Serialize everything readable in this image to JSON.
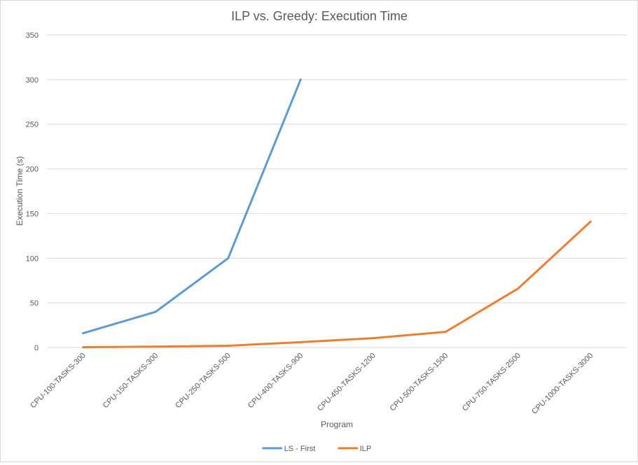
{
  "chart_data": {
    "type": "line",
    "title": "ILP vs. Greedy: Execution Time",
    "xlabel": "Program",
    "ylabel": "Execution Time (s)",
    "ylim": [
      0,
      350
    ],
    "yticks": [
      0,
      50,
      100,
      150,
      200,
      250,
      300,
      350
    ],
    "grid": true,
    "legend": "bottom",
    "categories": [
      "CPU-100-TASKS-300",
      "CPU-150-TASKS-300",
      "CPU-250-TASKS-500",
      "CPU-400-TASKS-900",
      "CPU-450-TASKS-1200",
      "CPU-500-TASKS-1500",
      "CPU-750-TASKS-2500",
      "CPU-1000-TASKS-3000"
    ],
    "series": [
      {
        "name": "LS - First",
        "color": "#5b9bd5",
        "values": [
          16,
          40,
          100,
          300,
          null,
          null,
          null,
          null
        ]
      },
      {
        "name": "ILP",
        "color": "#ed7d31",
        "values": [
          0.3,
          1,
          2,
          6,
          10.5,
          17.5,
          66,
          141
        ]
      }
    ]
  }
}
